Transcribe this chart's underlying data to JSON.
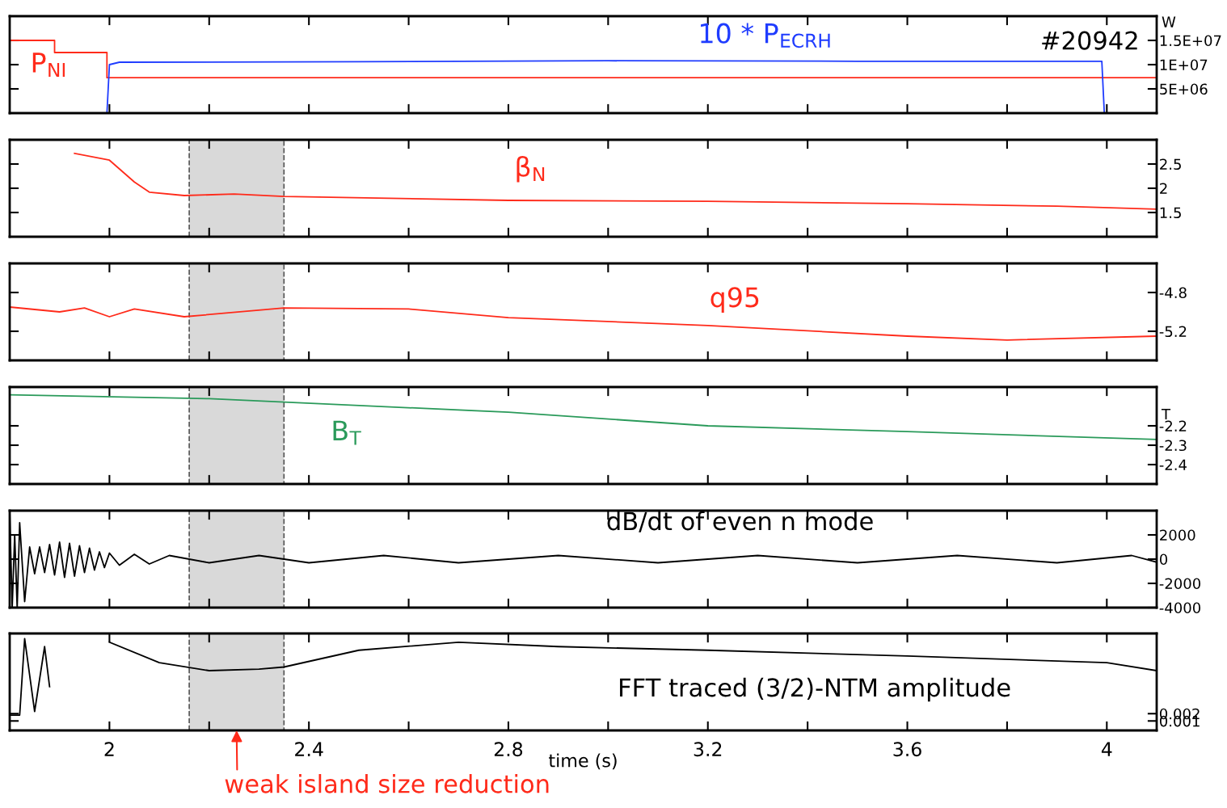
{
  "chart_data": [
    {
      "type": "line",
      "xlim": [
        1.8,
        4.1
      ],
      "ylim": [
        0,
        20000000
      ],
      "ylabel": "W",
      "tick_labels": "y",
      "xticks": [
        2,
        2.2,
        2.4,
        2.6,
        2.8,
        3,
        3.2,
        3.4,
        3.6,
        3.8,
        4
      ],
      "yticks": [
        {
          "value": 5000000,
          "label": "5E+06"
        },
        {
          "value": 10000000,
          "label": "1E+07"
        },
        {
          "value": 15000000,
          "label": "1.5E+07"
        }
      ],
      "annotations": [
        "#20942"
      ],
      "series": [
        {
          "name": "P$_{NI}$",
          "color": "#ff2a1a",
          "x": [
            1.8,
            1.89,
            1.89,
            1.995,
            1.995,
            4.1
          ],
          "values": [
            15000000,
            15000000,
            12500000,
            12500000,
            7300000,
            7300000
          ]
        },
        {
          "name": "10 * P$_{ECRH}$",
          "color": "#1f3cff",
          "x": [
            1.8,
            1.995,
            2.0,
            2.02,
            2.5,
            3.0,
            3.5,
            3.99,
            3.995,
            4.1
          ],
          "values": [
            0,
            0,
            10000000,
            10500000,
            10600000,
            10800000,
            10700000,
            10700000,
            0,
            0
          ]
        }
      ]
    },
    {
      "type": "line",
      "xlim": [
        1.8,
        4.1
      ],
      "ylim": [
        1,
        3
      ],
      "tick_labels": "y",
      "xticks": [
        2,
        2.2,
        2.4,
        2.6,
        2.8,
        3,
        3.2,
        3.4,
        3.6,
        3.8,
        4
      ],
      "yticks": [
        1.5,
        2,
        2.5
      ],
      "bands": [
        {
          "axis": "x",
          "from": 2.16,
          "to": 2.35,
          "color": "#d9d9d9"
        }
      ],
      "series": [
        {
          "name": "β$_{N}$",
          "color": "#ff2a1a",
          "x": [
            1.93,
            2.0,
            2.05,
            2.08,
            2.15,
            2.25,
            2.35,
            2.8,
            3.2,
            3.6,
            3.9,
            4.1
          ],
          "values": [
            2.72,
            2.58,
            2.13,
            1.92,
            1.85,
            1.88,
            1.83,
            1.75,
            1.73,
            1.68,
            1.63,
            1.57
          ]
        }
      ]
    },
    {
      "type": "line",
      "xlim": [
        1.8,
        4.1
      ],
      "ylim": [
        -5.5,
        -4.5
      ],
      "tick_labels": "y",
      "xticks": [
        2,
        2.2,
        2.4,
        2.6,
        2.8,
        3,
        3.2,
        3.4,
        3.6,
        3.8,
        4
      ],
      "yticks": [
        -5.2,
        -4.8
      ],
      "bands": [
        {
          "axis": "x",
          "from": 2.16,
          "to": 2.35,
          "color": "#d9d9d9"
        }
      ],
      "series": [
        {
          "name": "q95",
          "color": "#ff2a1a",
          "x": [
            1.8,
            1.9,
            1.95,
            2.0,
            2.05,
            2.15,
            2.35,
            2.6,
            2.8,
            3.2,
            3.6,
            3.8,
            4.1
          ],
          "values": [
            -4.95,
            -5.0,
            -4.96,
            -5.05,
            -4.97,
            -5.05,
            -4.96,
            -4.97,
            -5.06,
            -5.14,
            -5.25,
            -5.29,
            -5.25
          ]
        }
      ]
    },
    {
      "type": "line",
      "xlim": [
        1.8,
        4.1
      ],
      "ylim": [
        -2.5,
        -2.0
      ],
      "ylabel": "T",
      "tick_labels": "y",
      "xticks": [
        2,
        2.2,
        2.4,
        2.6,
        2.8,
        3,
        3.2,
        3.4,
        3.6,
        3.8,
        4
      ],
      "yticks": [
        -2.4,
        -2.3,
        -2.2
      ],
      "bands": [
        {
          "axis": "x",
          "from": 2.16,
          "to": 2.35,
          "color": "#d9d9d9"
        }
      ],
      "series": [
        {
          "name": "B$_{T}$",
          "color": "#2a9a5a",
          "x": [
            1.8,
            2.2,
            2.8,
            3.2,
            3.6,
            4.1
          ],
          "values": [
            -2.04,
            -2.06,
            -2.13,
            -2.2,
            -2.23,
            -2.27
          ]
        }
      ]
    },
    {
      "type": "line",
      "xlim": [
        1.8,
        4.1
      ],
      "ylim": [
        -4000,
        4000
      ],
      "tick_labels": "y",
      "xticks": [
        2,
        2.2,
        2.4,
        2.6,
        2.8,
        3,
        3.2,
        3.4,
        3.6,
        3.8,
        4
      ],
      "yticks": [
        -4000,
        -2000,
        0,
        2000
      ],
      "bands": [
        {
          "axis": "x",
          "from": 2.16,
          "to": 2.35,
          "color": "#d9d9d9"
        }
      ],
      "series": [
        {
          "name": "dB/dt of even n mode",
          "color": "#000000",
          "x": [
            1.8,
            1.805,
            1.81,
            1.815,
            1.82,
            1.83,
            1.84,
            1.85,
            1.86,
            1.87,
            1.88,
            1.89,
            1.9,
            1.91,
            1.92,
            1.93,
            1.94,
            1.95,
            1.96,
            1.97,
            1.98,
            1.99,
            2.0,
            2.02,
            2.05,
            2.08,
            2.12,
            2.2,
            2.3,
            2.4,
            2.55,
            2.7,
            2.9,
            3.1,
            3.3,
            3.5,
            3.7,
            3.9,
            4.05,
            4.1
          ],
          "values": [
            4000,
            -4000,
            2000,
            -4000,
            3000,
            -3500,
            1000,
            -1200,
            1000,
            -1100,
            1200,
            -1300,
            1400,
            -1500,
            1300,
            -1400,
            1100,
            -1100,
            900,
            -900,
            600,
            -700,
            500,
            -500,
            400,
            -400,
            300,
            -300,
            300,
            -300,
            300,
            -300,
            300,
            -300,
            300,
            -300,
            300,
            -300,
            300,
            -250
          ]
        }
      ]
    },
    {
      "type": "line",
      "xlim": [
        1.8,
        4.1
      ],
      "ylim": [
        -0.0003,
        0.013
      ],
      "xlabel": "time (s)",
      "xticks": [
        2,
        {
          "value": 2.2,
          "label": null
        },
        2.4,
        {
          "value": 2.6,
          "label": null
        },
        2.8,
        {
          "value": 3,
          "label": null
        },
        3.2,
        {
          "value": 3.4,
          "label": null
        },
        3.6,
        {
          "value": 3.8,
          "label": null
        },
        4
      ],
      "yticks": [
        0.001,
        0.002
      ],
      "bands": [
        {
          "axis": "x",
          "from": 2.16,
          "to": 2.35,
          "color": "#d9d9d9",
          "label": "weak island size reduction"
        }
      ],
      "series": [
        {
          "name": "FFT traced (3/2)-NTM amplitude",
          "color": "#000000",
          "x": [
            1.8,
            1.82,
            1.83,
            1.85,
            1.87,
            1.88,
            1.9,
            1.95,
            2.0,
            2.1,
            2.2,
            2.3,
            2.35,
            2.5,
            2.7,
            2.9,
            3.2,
            3.6,
            4.0,
            4.1
          ],
          "values": [
            0.0018,
            0.0018,
            0.0123,
            0.0023,
            0.0112,
            0.0057,
            null,
            null,
            0.0118,
            0.009,
            0.0079,
            0.0081,
            0.0084,
            0.0107,
            0.0118,
            0.0112,
            0.0107,
            0.0099,
            0.009,
            0.0079
          ]
        }
      ]
    }
  ]
}
